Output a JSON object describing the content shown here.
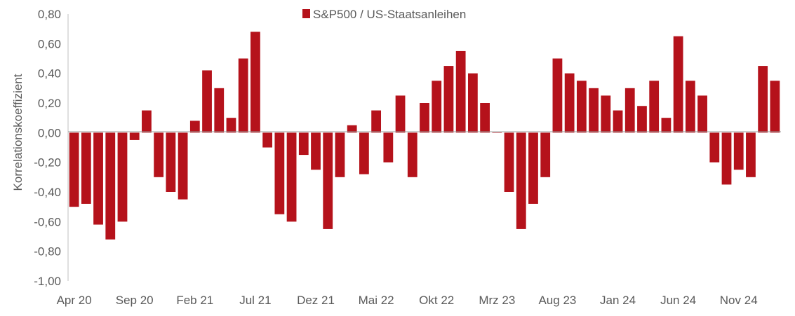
{
  "chart_data": {
    "type": "bar",
    "title": "",
    "xlabel": "",
    "ylabel": "Korrelationskoeffizient",
    "ylim": [
      -1.0,
      0.8
    ],
    "yticks": [
      0.8,
      0.6,
      0.4,
      0.2,
      0.0,
      -0.2,
      -0.4,
      -0.6,
      -0.8,
      -1.0
    ],
    "ytick_labels": [
      "0,80",
      "0,60",
      "0,40",
      "0,20",
      "0,00",
      "-0,20",
      "-0,40",
      "-0,60",
      "-0,80",
      "-1,00"
    ],
    "xtick_labels": [
      "Apr 20",
      "Sep 20",
      "Feb 21",
      "Jul 21",
      "Dez 21",
      "Mai 22",
      "Okt 22",
      "Mrz 23",
      "Aug 23",
      "Jan 24",
      "Jun 24",
      "Nov 24"
    ],
    "grid": false,
    "legend": "top-center",
    "series": [
      {
        "name": "S&P500 / US-Staatsanleihen",
        "color": "#b5121b",
        "x": [
          "2020-04",
          "2020-05",
          "2020-06",
          "2020-07",
          "2020-08",
          "2020-09",
          "2020-10",
          "2020-11",
          "2020-12",
          "2021-01",
          "2021-02",
          "2021-03",
          "2021-04",
          "2021-05",
          "2021-06",
          "2021-07",
          "2021-08",
          "2021-09",
          "2021-10",
          "2021-11",
          "2021-12",
          "2022-01",
          "2022-02",
          "2022-03",
          "2022-04",
          "2022-05",
          "2022-06",
          "2022-07",
          "2022-08",
          "2022-09",
          "2022-10",
          "2022-11",
          "2022-12",
          "2023-01",
          "2023-02",
          "2023-03",
          "2023-04",
          "2023-05",
          "2023-06",
          "2023-07",
          "2023-08",
          "2023-09",
          "2023-10",
          "2023-11",
          "2023-12",
          "2024-01",
          "2024-02",
          "2024-03",
          "2024-04",
          "2024-05",
          "2024-06",
          "2024-07",
          "2024-08",
          "2024-09",
          "2024-10",
          "2024-11",
          "2024-12",
          "2025-01",
          "2025-02"
        ],
        "values": [
          -0.5,
          -0.48,
          -0.62,
          -0.72,
          -0.6,
          -0.05,
          0.15,
          -0.3,
          -0.4,
          -0.45,
          0.08,
          0.42,
          0.3,
          0.1,
          0.5,
          0.68,
          -0.1,
          -0.55,
          -0.6,
          -0.15,
          -0.25,
          -0.65,
          -0.3,
          0.05,
          -0.28,
          0.15,
          -0.2,
          0.25,
          -0.3,
          0.2,
          0.35,
          0.45,
          0.55,
          0.4,
          0.2,
          0.0,
          -0.4,
          -0.65,
          -0.48,
          -0.3,
          0.5,
          0.4,
          0.35,
          0.3,
          0.25,
          0.15,
          0.3,
          0.18,
          0.35,
          0.1,
          0.65,
          0.35,
          0.25,
          -0.2,
          -0.35,
          -0.25,
          -0.3,
          0.45,
          0.35
        ]
      }
    ]
  }
}
